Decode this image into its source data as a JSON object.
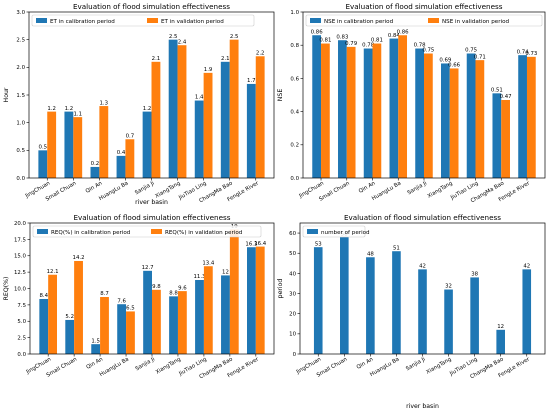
{
  "chart_data": [
    {
      "type": "bar",
      "title": "Evaluation of flood simulation effectiveness",
      "xlabel": "river basin",
      "ylabel": "Hour",
      "ylim": [
        0,
        3.0
      ],
      "yticks": [
        "0.0",
        "0.5",
        "1.0",
        "1.5",
        "2.0",
        "2.5",
        "3.0"
      ],
      "ytick_values": [
        0,
        0.5,
        1.0,
        1.5,
        2.0,
        2.5,
        3.0
      ],
      "categories": [
        "JingChuan",
        "Small Chuan",
        "Qin An",
        "HuangLu Ba",
        "Sanjia Ji",
        "XiangTang",
        "JiuTiao Ling",
        "ChangMa Bao",
        "FengLe River"
      ],
      "legend_position": "top-left",
      "series": [
        {
          "name": "ET in calibration period",
          "color": "#1f77b4",
          "values": [
            0.5,
            1.2,
            0.2,
            0.4,
            1.2,
            2.5,
            1.4,
            2.1,
            1.7
          ]
        },
        {
          "name": "ET in validation period",
          "color": "#ff7f0e",
          "values": [
            1.2,
            1.1,
            1.3,
            0.7,
            2.1,
            2.4,
            1.9,
            2.5,
            2.2
          ]
        }
      ],
      "labels": [
        [
          "0.5",
          "1.2",
          "0.2",
          "0.4",
          "1.2",
          "2.5",
          "1.4",
          "2.1",
          "1.7"
        ],
        [
          "1.2",
          "1.1",
          "1.3",
          "0.7",
          "2.1",
          "2.4",
          "1.9",
          "2.5",
          "2.2"
        ]
      ]
    },
    {
      "type": "bar",
      "title": "Evaluation of flood simulation effectiveness",
      "xlabel": "",
      "ylabel": "NSE",
      "ylim": [
        0,
        1.0
      ],
      "yticks": [
        "0.0",
        "0.2",
        "0.4",
        "0.6",
        "0.8",
        "1.0"
      ],
      "ytick_values": [
        0,
        0.2,
        0.4,
        0.6,
        0.8,
        1.0
      ],
      "categories": [
        "JingChuan",
        "Small Chuan",
        "Qin An",
        "HuangLu Ba",
        "Sanjia Ji",
        "XiangTang",
        "JiuTiao Ling",
        "ChangMa Bao",
        "FengLe River"
      ],
      "legend_position": "top",
      "series": [
        {
          "name": "NSE in calibration period",
          "color": "#1f77b4",
          "values": [
            0.86,
            0.83,
            0.78,
            0.84,
            0.78,
            0.69,
            0.75,
            0.51,
            0.74
          ]
        },
        {
          "name": "NSE in validation period",
          "color": "#ff7f0e",
          "values": [
            0.81,
            0.79,
            0.81,
            0.86,
            0.75,
            0.66,
            0.71,
            0.47,
            0.73
          ]
        }
      ],
      "labels": [
        [
          "0.86",
          "0.83",
          "0.78",
          "0.84",
          "0.78",
          "0.69",
          "0.75",
          "0.51",
          "0.74"
        ],
        [
          "0.81",
          "0.79",
          "0.81",
          "0.86",
          "0.75",
          "0.66",
          "0.71",
          "0.47",
          "0.73"
        ]
      ]
    },
    {
      "type": "bar",
      "title": "Evaluation of flood simulation effectiveness",
      "xlabel": "",
      "ylabel": "REQ(%)",
      "ylim": [
        0,
        20
      ],
      "yticks": [
        "0.0",
        "2.5",
        "5.0",
        "7.5",
        "10.0",
        "12.5",
        "15.0",
        "17.5",
        "20.0"
      ],
      "ytick_values": [
        0,
        2.5,
        5,
        7.5,
        10,
        12.5,
        15,
        17.5,
        20
      ],
      "categories": [
        "JingChuan",
        "Small Chuan",
        "Qin An",
        "HuangLu Ba",
        "Sanjia Ji",
        "XiangTang",
        "JiuTiao Ling",
        "ChangMa Bao",
        "FengLe River"
      ],
      "legend_position": "top-left",
      "series": [
        {
          "name": "REQ(%) in calibration period",
          "color": "#1f77b4",
          "values": [
            8.4,
            5.2,
            1.5,
            7.6,
            12.7,
            8.8,
            11.3,
            12,
            16.3
          ]
        },
        {
          "name": "REQ(%) in validation period",
          "color": "#ff7f0e",
          "values": [
            12.1,
            14.2,
            8.7,
            6.5,
            9.8,
            9.6,
            13.4,
            19,
            16.4
          ]
        }
      ],
      "labels": [
        [
          "8.4",
          "5.2",
          "1.5",
          "7.6",
          "12.7",
          "8.8",
          "11.3",
          "12",
          "16.3"
        ],
        [
          "12.1",
          "14.2",
          "8.7",
          "6.5",
          "9.8",
          "9.6",
          "13.4",
          "19",
          "16.4"
        ]
      ]
    },
    {
      "type": "bar",
      "title": "Evaluation of flood simulation effectiveness",
      "xlabel": "river basin",
      "ylabel": "period",
      "ylim": [
        0,
        65
      ],
      "yticks": [
        "0",
        "10",
        "20",
        "30",
        "40",
        "50",
        "60"
      ],
      "ytick_values": [
        0,
        10,
        20,
        30,
        40,
        50,
        60
      ],
      "categories": [
        "JingChuan",
        "Small Chuan",
        "Qin An",
        "HuangLu Ba",
        "Sanjia Ji",
        "XiangTang",
        "JiuTiao Ling",
        "ChangMa Bao",
        "FengLe River"
      ],
      "legend_position": "top-left",
      "series": [
        {
          "name": "number of period",
          "color": "#1f77b4",
          "values": [
            53,
            58,
            48,
            51,
            42,
            32,
            38,
            12,
            42
          ]
        }
      ],
      "labels": [
        [
          "53",
          "58",
          "48",
          "51",
          "42",
          "32",
          "38",
          "12",
          "42"
        ]
      ]
    }
  ]
}
